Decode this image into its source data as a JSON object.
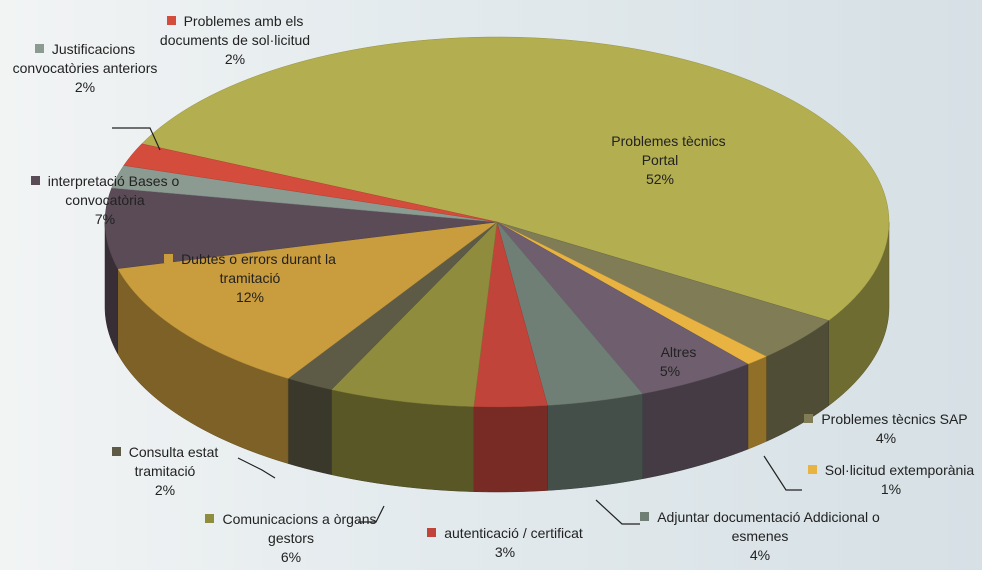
{
  "chart_data": {
    "type": "pie",
    "categories": [
      "Problemes tècnics Portal",
      "Problemes tècnics SAP",
      "Sol·licitud extemporània",
      "Altres",
      "Adjuntar documentació Addicional o esmenes",
      "autenticació / certificat",
      "Comunicacions a òrgans gestors",
      "Consulta estat tramitació",
      "Dubtes o errors durant la tramitació",
      "interpretació Bases o convocatòria",
      "Justificacions convocatòries anteriors",
      "Problemes amb els documents de sol·licitud"
    ],
    "values": [
      52,
      4,
      1,
      5,
      4,
      3,
      6,
      2,
      12,
      7,
      2,
      2
    ],
    "value_labels": [
      "52%",
      "4%",
      "1%",
      "5%",
      "4%",
      "3%",
      "6%",
      "2%",
      "12%",
      "7%",
      "2%",
      "2%"
    ],
    "colors": [
      "#b3ae4f",
      "#7f7c56",
      "#e8b341",
      "#6f5f6e",
      "#707f75",
      "#c1443a",
      "#8f8d3d",
      "#5d5b46",
      "#c99c3d",
      "#5b4b57",
      "#8c9b92",
      "#d44c3c"
    ]
  }
}
